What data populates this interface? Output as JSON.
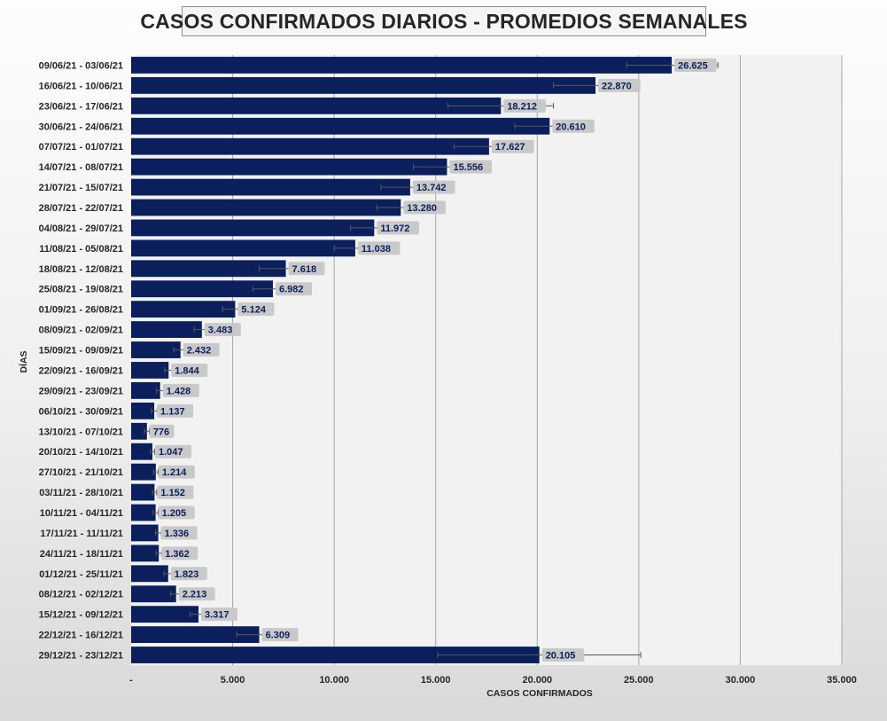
{
  "chart_data": {
    "type": "bar",
    "orientation": "horizontal",
    "title": "CASOS CONFIRMADOS DIARIOS - PROMEDIOS SEMANALES",
    "xlabel": "CASOS CONFIRMADOS",
    "ylabel": "DÍAS",
    "xlim": [
      0,
      35000
    ],
    "x_ticks": [
      0,
      5000,
      10000,
      15000,
      20000,
      25000,
      30000,
      35000
    ],
    "x_tick_labels": [
      "-",
      "5.000",
      "10.000",
      "15.000",
      "20.000",
      "25.000",
      "30.000",
      "35.000"
    ],
    "grid": "vertical",
    "bar_color": "#0a1f5c",
    "categories": [
      "09/06/21 - 03/06/21",
      "16/06/21 - 10/06/21",
      "23/06/21 - 17/06/21",
      "30/06/21 - 24/06/21",
      "07/07/21 - 01/07/21",
      "14/07/21 - 08/07/21",
      "21/07/21 - 15/07/21",
      "28/07/21 - 22/07/21",
      "04/08/21 - 29/07/21",
      "11/08/21 - 05/08/21",
      "18/08/21 - 12/08/21",
      "25/08/21 - 19/08/21",
      "01/09/21 - 26/08/21",
      "08/09/21 - 02/09/21",
      "15/09/21 - 09/09/21",
      "22/09/21 - 16/09/21",
      "29/09/21 - 23/09/21",
      "06/10/21 - 30/09/21",
      "13/10/21 - 07/10/21",
      "20/10/21 - 14/10/21",
      "27/10/21 - 21/10/21",
      "03/11/21 - 28/10/21",
      "10/11/21 - 04/11/21",
      "17/11/21 - 11/11/21",
      "24/11/21 - 18/11/21",
      "01/12/21 - 25/11/21",
      "08/12/21 - 02/12/21",
      "15/12/21 - 09/12/21",
      "22/12/21 - 16/12/21",
      "29/12/21 - 23/12/21"
    ],
    "values": [
      26625,
      22870,
      18212,
      20610,
      17627,
      15556,
      13742,
      13280,
      11972,
      11038,
      7618,
      6982,
      5124,
      3483,
      2432,
      1844,
      1428,
      1137,
      776,
      1047,
      1214,
      1152,
      1205,
      1336,
      1362,
      1823,
      2213,
      3317,
      6309,
      20105
    ],
    "value_labels": [
      "26.625",
      "22.870",
      "18.212",
      "20.610",
      "17.627",
      "15.556",
      "13.742",
      "13.280",
      "11.972",
      "11.038",
      "7.618",
      "6.982",
      "5.124",
      "3.483",
      "2.432",
      "1.844",
      "1.428",
      "1.137",
      "776",
      "1.047",
      "1.214",
      "1.152",
      "1.205",
      "1.336",
      "1.362",
      "1.823",
      "2.213",
      "3.317",
      "6.309",
      "20.105"
    ],
    "error_low": [
      24400,
      20800,
      15600,
      18900,
      15900,
      13900,
      12300,
      12100,
      10800,
      10000,
      6300,
      6000,
      4500,
      3100,
      2100,
      1650,
      1250,
      1000,
      650,
      950,
      1100,
      1050,
      1080,
      1200,
      1220,
      1620,
      1950,
      2900,
      5200,
      15100
    ],
    "error_high": [
      28900,
      25000,
      20800,
      22400,
      19700,
      17100,
      15200,
      14600,
      13300,
      12100,
      8800,
      7900,
      5800,
      3900,
      2800,
      2050,
      1650,
      1280,
      900,
      1150,
      1330,
      1260,
      1330,
      1480,
      1500,
      2050,
      2450,
      3800,
      7300,
      25100
    ]
  }
}
